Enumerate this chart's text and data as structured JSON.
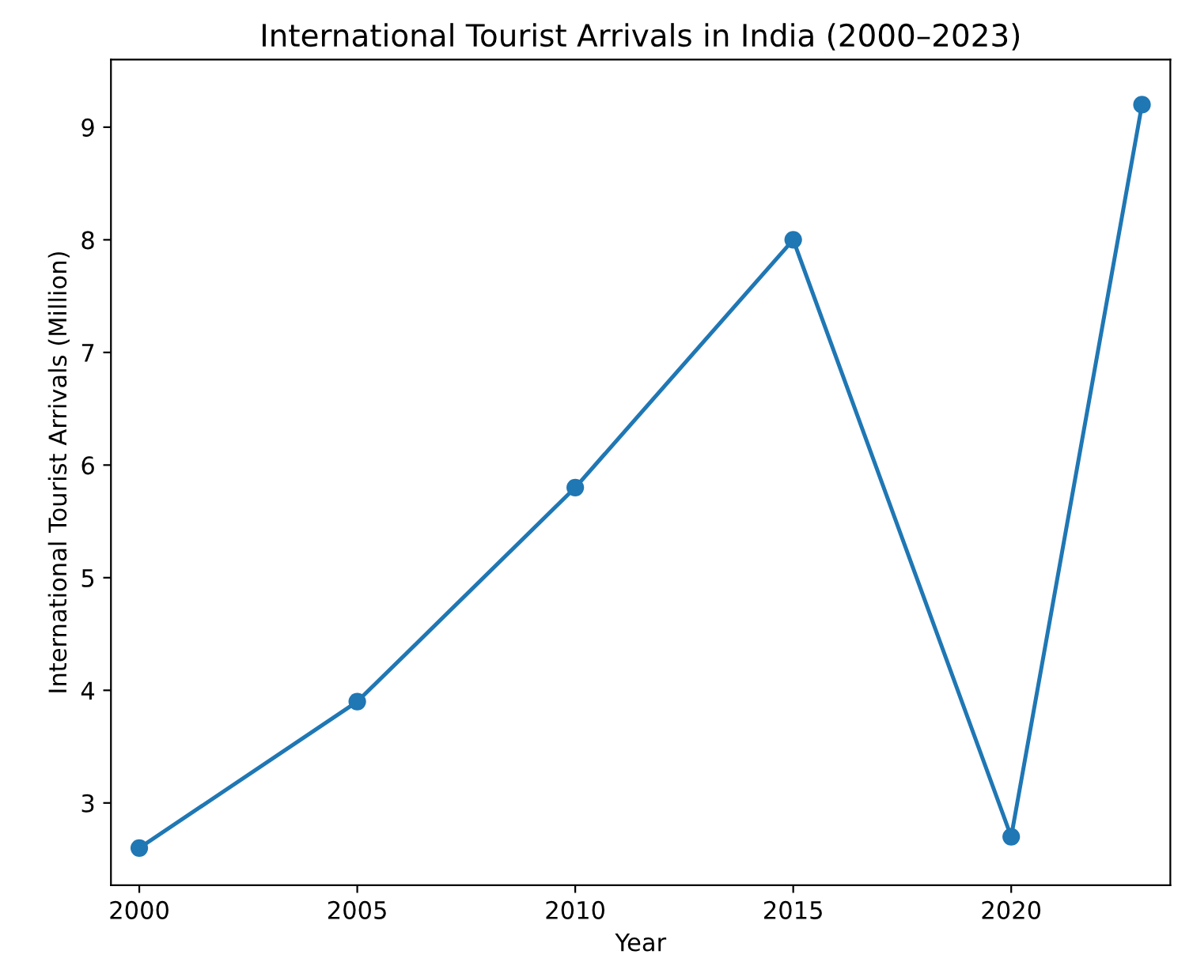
{
  "chart_data": {
    "type": "line",
    "title": "International Tourist Arrivals in India (2000–2023)",
    "xlabel": "Year",
    "ylabel": "International Tourist Arrivals (Million)",
    "x": [
      2000,
      2005,
      2010,
      2015,
      2020,
      2023
    ],
    "series": [
      {
        "color": "#1f77b4",
        "values": [
          2.6,
          3.9,
          5.8,
          8.0,
          2.7,
          9.2
        ]
      }
    ],
    "marker": "circle",
    "line_style": "solid",
    "grid": false,
    "xlim": [
      1999.35,
      2023.65
    ],
    "xticks": [
      2000,
      2005,
      2010,
      2015,
      2020
    ],
    "ylim": [
      2.27,
      9.6
    ],
    "yticks": [
      3,
      4,
      5,
      6,
      7,
      8,
      9
    ]
  }
}
